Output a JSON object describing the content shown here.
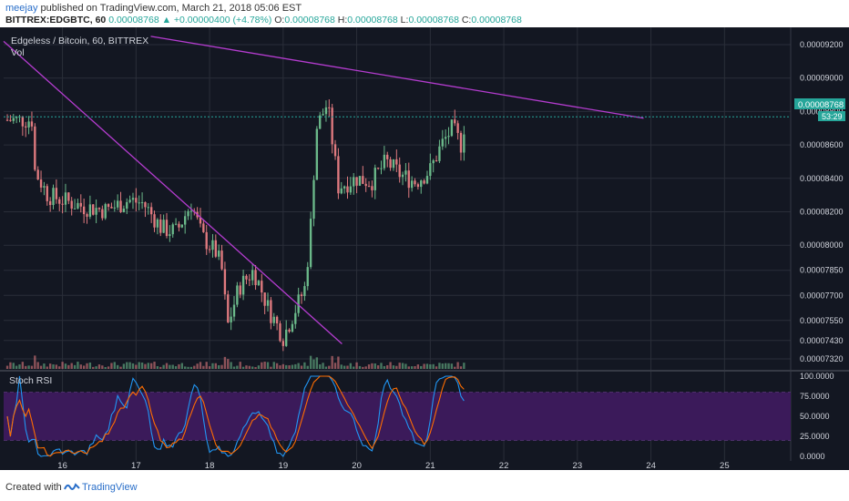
{
  "header": {
    "author": "meejay",
    "published_text": "published on TradingView.com, March 21, 2018 05:06 EST",
    "symbol": "BITTREX:EDGBTC, 60",
    "price": "0.00008768",
    "change_arrow": "▲",
    "change": "+0.00000400 (+4.78%)",
    "o_label": "O:",
    "o": "0.00008768",
    "h_label": "H:",
    "h": "0.00008768",
    "l_label": "L:",
    "l": "0.00008768",
    "c_label": "C:",
    "c": "0.00008768"
  },
  "legend": {
    "title": "Edgeless / Bitcoin, 60, BITTREX",
    "volume": "Vol"
  },
  "price_badge": {
    "price": "0.00008768",
    "countdown": "53:29"
  },
  "rsi_panel": {
    "title": "Stoch RSI"
  },
  "footer": {
    "created_with": "Created with",
    "brand": "TradingView"
  },
  "colors": {
    "background": "#131722",
    "grid": "#2a2e39",
    "up": "#6bb98a",
    "down": "#e07a7f",
    "trendline": "#b43ccf",
    "rsi_fill": "#3b1a5a",
    "k_line": "#2196f3",
    "d_line": "#ff6d00"
  },
  "chart_data": {
    "type": "candlestick",
    "x_tick_labels": [
      "16",
      "17",
      "18",
      "19",
      "20",
      "21",
      "22",
      "23",
      "24",
      "25"
    ],
    "y_tick_labels": [
      "0.00009200",
      "0.00009000",
      "0.00008800",
      "0.00008600",
      "0.00008400",
      "0.00008200",
      "0.00008000",
      "0.00007850",
      "0.00007700",
      "0.00007550",
      "0.00007430",
      "0.00007320"
    ],
    "rsi_tick_labels": [
      "100.0000",
      "75.0000",
      "50.0000",
      "25.0000",
      "0.0000"
    ],
    "rsi_bands": [
      20,
      80
    ],
    "x_range_days": [
      15.2,
      25.9
    ],
    "y_range": [
      7.26e-05,
      9.26e-05
    ],
    "close_path": [
      [
        15.25,
        8.75e-05
      ],
      [
        15.6,
        8.75e-05
      ],
      [
        15.62,
        8.45e-05
      ],
      [
        15.8,
        8.3e-05
      ],
      [
        16.0,
        8.27e-05
      ],
      [
        16.3,
        8.23e-05
      ],
      [
        16.6,
        8.21e-05
      ],
      [
        16.9,
        8.27e-05
      ],
      [
        17.1,
        8.25e-05
      ],
      [
        17.35,
        8.1e-05
      ],
      [
        17.55,
        8.08e-05
      ],
      [
        17.75,
        8.25e-05
      ],
      [
        17.9,
        8.05e-05
      ],
      [
        18.1,
        7.95e-05
      ],
      [
        18.2,
        7.8e-05
      ],
      [
        18.22,
        7.48e-05
      ],
      [
        18.4,
        7.75e-05
      ],
      [
        18.6,
        7.85e-05
      ],
      [
        18.8,
        7.62e-05
      ],
      [
        19.0,
        7.45e-05
      ],
      [
        19.2,
        7.65e-05
      ],
      [
        19.3,
        7.75e-05
      ],
      [
        19.38,
        8.15e-05
      ],
      [
        19.45,
        8.7e-05
      ],
      [
        19.6,
        8.85e-05
      ],
      [
        19.75,
        8.35e-05
      ],
      [
        20.0,
        8.4e-05
      ],
      [
        20.2,
        8.38e-05
      ],
      [
        20.4,
        8.5e-05
      ],
      [
        20.6,
        8.42e-05
      ],
      [
        20.8,
        8.38e-05
      ],
      [
        21.0,
        8.45e-05
      ],
      [
        21.15,
        8.6e-05
      ],
      [
        21.3,
        8.7e-05
      ],
      [
        21.42,
        8.6e-05
      ],
      [
        21.48,
        8.77e-05
      ]
    ],
    "trendlines": [
      {
        "from": [
          15.2,
          9.22e-05
        ],
        "to": [
          19.8,
          7.41e-05
        ]
      },
      {
        "from": [
          17.2,
          9.25e-05
        ],
        "to": [
          23.9,
          8.76e-05
        ]
      }
    ],
    "last_price": 8.768e-05
  }
}
